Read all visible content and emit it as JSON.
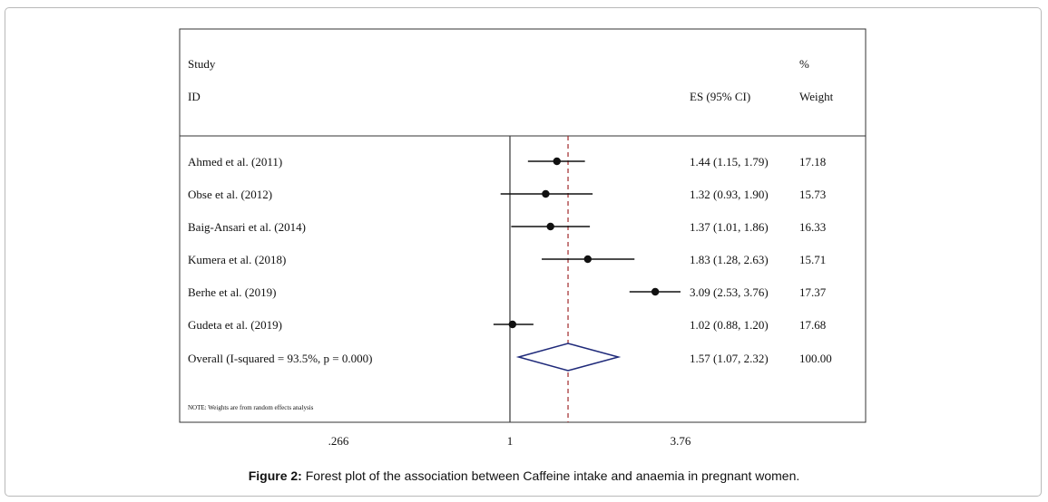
{
  "header": {
    "study": "Study",
    "id": "ID",
    "pct": "%",
    "es_ci": "ES (95% CI)",
    "weight": "Weight"
  },
  "note": "NOTE: Weights are from random effects analysis",
  "caption": {
    "label": "Figure 2:",
    "text": "Forest plot of the association between Caffeine intake and anaemia in pregnant women."
  },
  "chart_data": {
    "type": "forest",
    "axis": {
      "scale": "log",
      "ticks": [
        ".266",
        "1",
        "3.76"
      ],
      "tick_values": [
        0.266,
        1,
        3.76
      ],
      "null_line": 1
    },
    "overall_line": 1.57,
    "studies": [
      {
        "name": "Ahmed et al. (2011)",
        "es": 1.44,
        "lo": 1.15,
        "hi": 1.79,
        "ci_text": "1.44 (1.15, 1.79)",
        "weight": "17.18"
      },
      {
        "name": "Obse et al. (2012)",
        "es": 1.32,
        "lo": 0.93,
        "hi": 1.9,
        "ci_text": "1.32 (0.93, 1.90)",
        "weight": "15.73"
      },
      {
        "name": "Baig-Ansari et al. (2014)",
        "es": 1.37,
        "lo": 1.01,
        "hi": 1.86,
        "ci_text": "1.37 (1.01, 1.86)",
        "weight": "16.33"
      },
      {
        "name": "Kumera et al. (2018)",
        "es": 1.83,
        "lo": 1.28,
        "hi": 2.63,
        "ci_text": "1.83 (1.28, 2.63)",
        "weight": "15.71"
      },
      {
        "name": "Berhe et al. (2019)",
        "es": 3.09,
        "lo": 2.53,
        "hi": 3.76,
        "ci_text": "3.09 (2.53, 3.76)",
        "weight": "17.37"
      },
      {
        "name": "Gudeta et al. (2019)",
        "es": 1.02,
        "lo": 0.88,
        "hi": 1.2,
        "ci_text": "1.02 (0.88, 1.20)",
        "weight": "17.68"
      }
    ],
    "overall": {
      "name": "Overall (I-squared = 93.5%, p = 0.000)",
      "es": 1.57,
      "lo": 1.07,
      "hi": 2.32,
      "ci_text": "1.57 (1.07, 2.32)",
      "weight": "100.00"
    }
  }
}
